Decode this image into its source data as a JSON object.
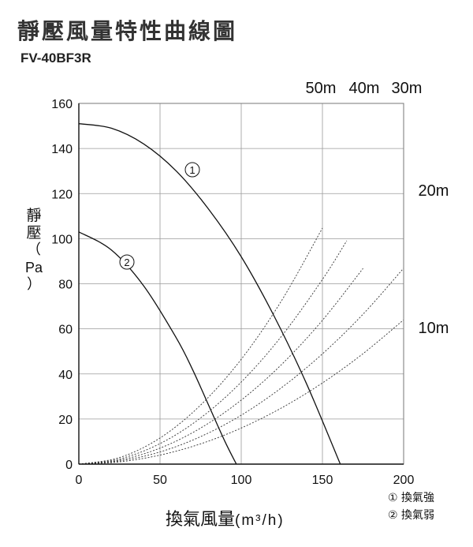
{
  "title": "靜壓風量特性曲線圖",
  "model": "FV-40BF3R",
  "ylabel": {
    "chars": [
      "靜",
      "壓"
    ],
    "open": "（",
    "unit": "Pa",
    "close": "）"
  },
  "xlabel": {
    "text": "換氣風量",
    "unit": "(m³/h)"
  },
  "legend": [
    "① 換氣強",
    "② 換氣弱"
  ],
  "chart_data": {
    "type": "line",
    "xlim": [
      0,
      200
    ],
    "ylim": [
      0,
      160
    ],
    "x_ticks": [
      "0",
      "50",
      "100",
      "150",
      "200"
    ],
    "y_ticks": [
      "0",
      "20",
      "40",
      "60",
      "80",
      "100",
      "120",
      "140",
      "160"
    ],
    "grid": true,
    "series": [
      {
        "name": "①",
        "x": [
          0,
          20,
          40,
          60,
          80,
          100,
          120,
          140,
          161
        ],
        "y": [
          151,
          149,
          142,
          130,
          113,
          92,
          66,
          36,
          0
        ]
      },
      {
        "name": "②",
        "x": [
          0,
          20,
          40,
          60,
          70,
          80,
          90,
          97
        ],
        "y": [
          103,
          95,
          79,
          56,
          42,
          26,
          10,
          0
        ]
      }
    ],
    "duct_resistance_curves": [
      {
        "label": "50m",
        "x": [
          0,
          25,
          50,
          75,
          100,
          125,
          150
        ],
        "y": [
          0,
          2.9,
          11.6,
          26.2,
          46.5,
          72.7,
          104.7
        ]
      },
      {
        "label": "40m",
        "x": [
          0,
          25,
          50,
          75,
          100,
          125,
          150,
          165
        ],
        "y": [
          0,
          2.3,
          9.1,
          20.5,
          36.4,
          56.9,
          81.9,
          99.1
        ]
      },
      {
        "label": "30m",
        "x": [
          0,
          25,
          50,
          75,
          100,
          125,
          150,
          175
        ],
        "y": [
          0,
          1.8,
          7.1,
          16,
          28.4,
          44.3,
          63.8,
          86.8
        ]
      },
      {
        "label": "20m",
        "x": [
          0,
          25,
          50,
          75,
          100,
          125,
          150,
          175,
          200
        ],
        "y": [
          0,
          1.4,
          5.4,
          12.2,
          21.7,
          34,
          48.9,
          66.5,
          86.9
        ]
      },
      {
        "label": "10m",
        "x": [
          0,
          25,
          50,
          75,
          100,
          125,
          150,
          175,
          200
        ],
        "y": [
          0,
          1,
          4,
          9,
          16,
          25,
          36,
          49,
          64
        ]
      }
    ]
  }
}
